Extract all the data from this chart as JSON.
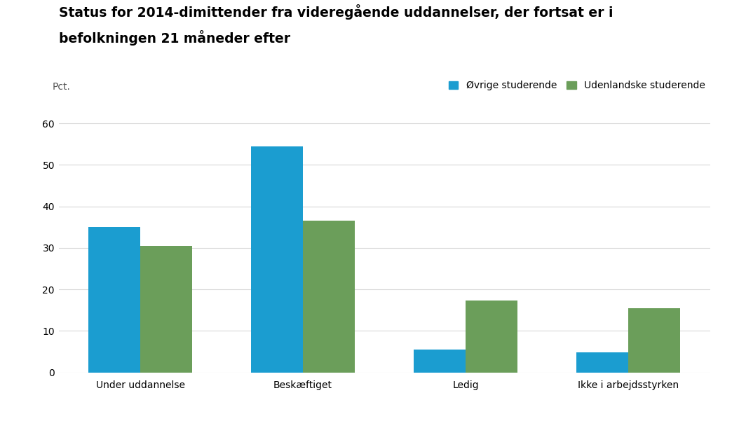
{
  "title_line1": "Status for 2014-dimittender fra videregående uddannelser, der fortsat er i",
  "title_line2": "befolkningen 21 måneder efter",
  "ylabel": "Pct.",
  "categories": [
    "Under uddannelse",
    "Beskæftiget",
    "Ledig",
    "Ikke i arbejdsstyrken"
  ],
  "series": [
    {
      "name": "Øvrige studerende",
      "color": "#1B9DD0",
      "values": [
        35.0,
        54.5,
        5.5,
        4.8
      ]
    },
    {
      "name": "Udenlandske studerende",
      "color": "#6B9E5A",
      "values": [
        30.5,
        36.5,
        17.3,
        15.5
      ]
    }
  ],
  "ylim": [
    0,
    65
  ],
  "yticks": [
    0,
    10,
    20,
    30,
    40,
    50,
    60
  ],
  "bar_width": 0.32,
  "background_color": "#ffffff",
  "grid_color": "#d8d8d8",
  "title_fontsize": 13.5,
  "legend_fontsize": 10,
  "tick_fontsize": 10,
  "ylabel_fontsize": 10
}
